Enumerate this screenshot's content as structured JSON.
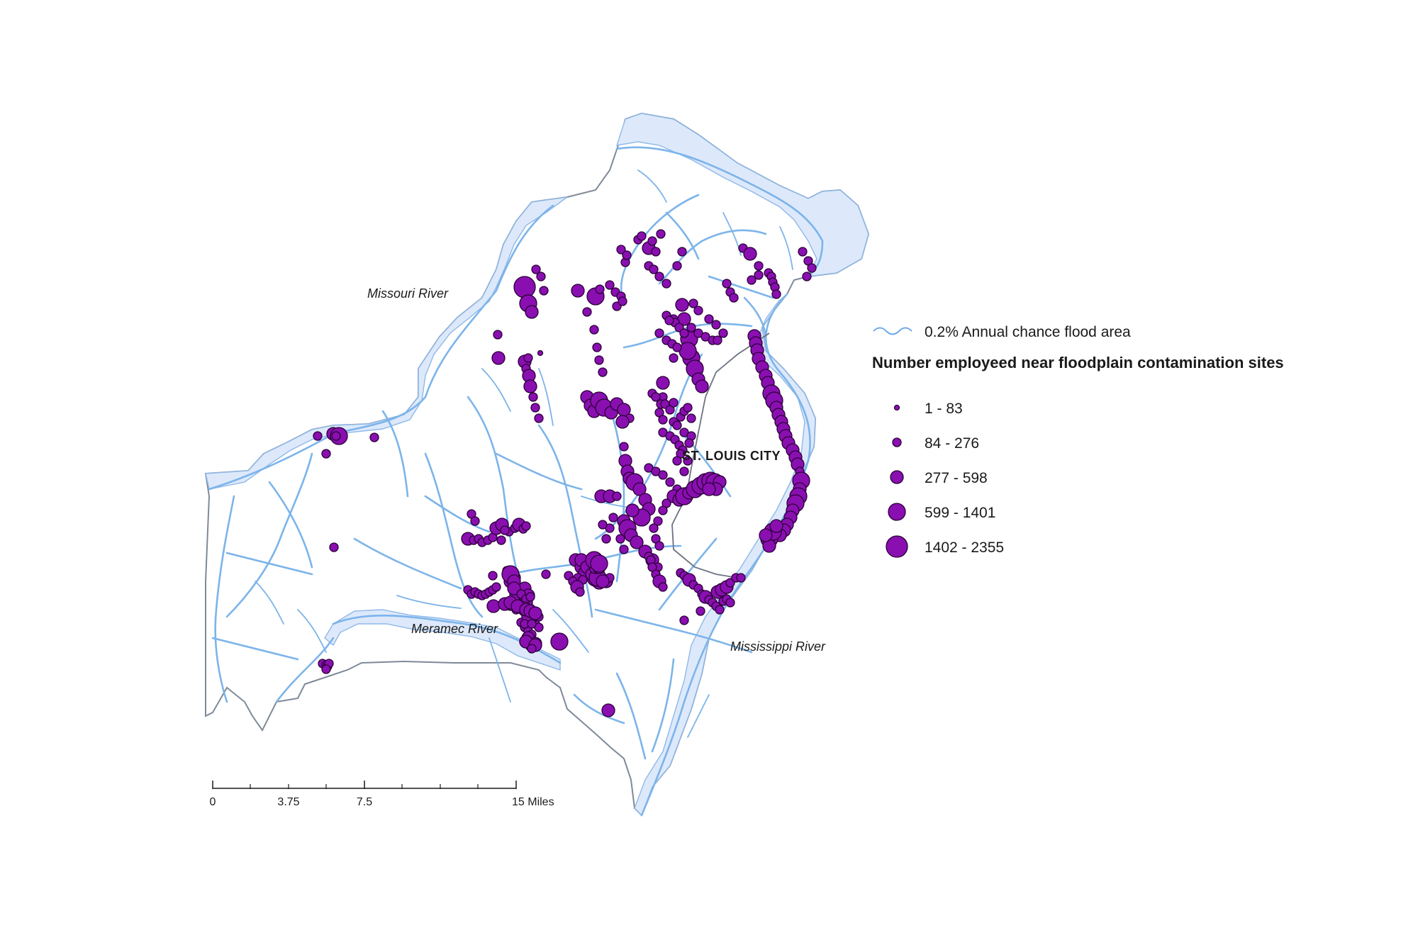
{
  "map": {
    "labels": {
      "missouri_river": "Missouri River",
      "meramec_river": "Meramec River",
      "mississippi_river": "Mississippi River",
      "st_louis_city": "ST. LOUIS CITY"
    },
    "scale_bar": {
      "ticks": [
        "0",
        "3.75",
        "7.5",
        "15 Miles"
      ]
    }
  },
  "legend": {
    "flood_area_label": "0.2% Annual chance flood area",
    "title": "Number employeed near floodplain contamination sites",
    "classes": [
      {
        "label": "1 - 83"
      },
      {
        "label": "84 - 276"
      },
      {
        "label": "277 - 598"
      },
      {
        "label": "599 - 1401"
      },
      {
        "label": "1402 - 2355"
      }
    ]
  },
  "colors": {
    "site_fill": "#8a0fb0",
    "site_outline": "#2a0038",
    "flood_fill": "#dde9fb",
    "stream": "#7cb4ea",
    "boundary": "#7f8a99"
  }
}
